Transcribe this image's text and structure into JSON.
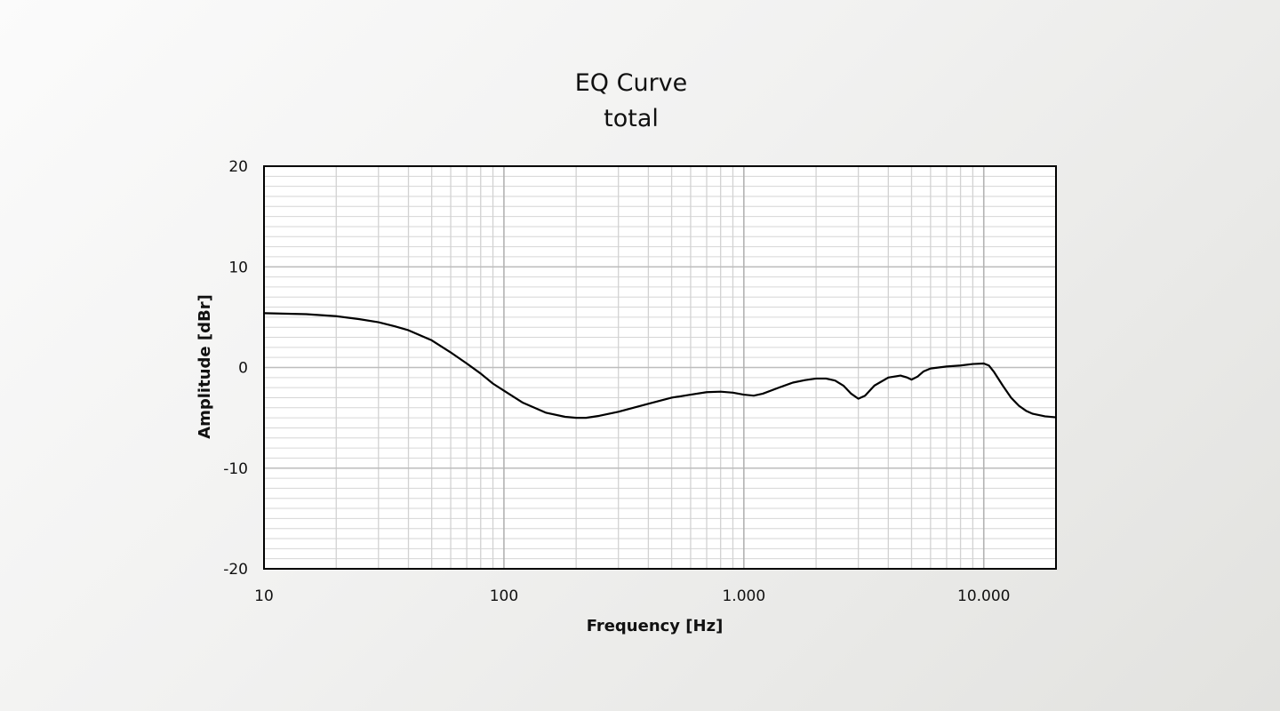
{
  "chart_data": {
    "type": "line",
    "title": "EQ Curve",
    "subtitle": "total",
    "xlabel": "Frequency [Hz]",
    "ylabel": "Amplitude  [dBr]",
    "x_scale": "log",
    "xlim": [
      10,
      20000
    ],
    "ylim": [
      -20,
      20
    ],
    "x_ticks": [
      10,
      100,
      1000,
      10000
    ],
    "x_tick_labels": [
      "10",
      "100",
      "1.000",
      "10.000"
    ],
    "y_ticks": [
      20,
      10,
      0,
      -10,
      -20
    ],
    "y_tick_labels": [
      "20",
      "10",
      "0",
      "-10",
      "-20"
    ],
    "grid": true,
    "line_color": "#000000",
    "series": [
      {
        "x": [
          10,
          15,
          20,
          25,
          30,
          35,
          40,
          50,
          60,
          70,
          80,
          90,
          100,
          120,
          150,
          180,
          200,
          220,
          250,
          300,
          400,
          500,
          600,
          700,
          800,
          900,
          1000,
          1100,
          1200,
          1400,
          1600,
          1800,
          2000,
          2200,
          2400,
          2600,
          2800,
          3000,
          3200,
          3500,
          4000,
          4500,
          4800,
          5000,
          5300,
          5600,
          6000,
          7000,
          8000,
          9000,
          10000,
          10500,
          11000,
          12000,
          13000,
          14000,
          15000,
          16000,
          18000,
          20000
        ],
        "y": [
          5.4,
          5.3,
          5.1,
          4.8,
          4.5,
          4.1,
          3.7,
          2.7,
          1.5,
          0.4,
          -0.6,
          -1.6,
          -2.3,
          -3.5,
          -4.5,
          -4.9,
          -5.0,
          -5.0,
          -4.8,
          -4.4,
          -3.6,
          -3.0,
          -2.7,
          -2.45,
          -2.4,
          -2.5,
          -2.7,
          -2.8,
          -2.6,
          -2.0,
          -1.5,
          -1.25,
          -1.1,
          -1.1,
          -1.3,
          -1.8,
          -2.6,
          -3.1,
          -2.8,
          -1.8,
          -1.0,
          -0.8,
          -1.0,
          -1.2,
          -0.9,
          -0.4,
          -0.1,
          0.1,
          0.2,
          0.35,
          0.4,
          0.2,
          -0.4,
          -1.8,
          -3.0,
          -3.8,
          -4.3,
          -4.6,
          -4.85,
          -4.95
        ]
      }
    ]
  }
}
